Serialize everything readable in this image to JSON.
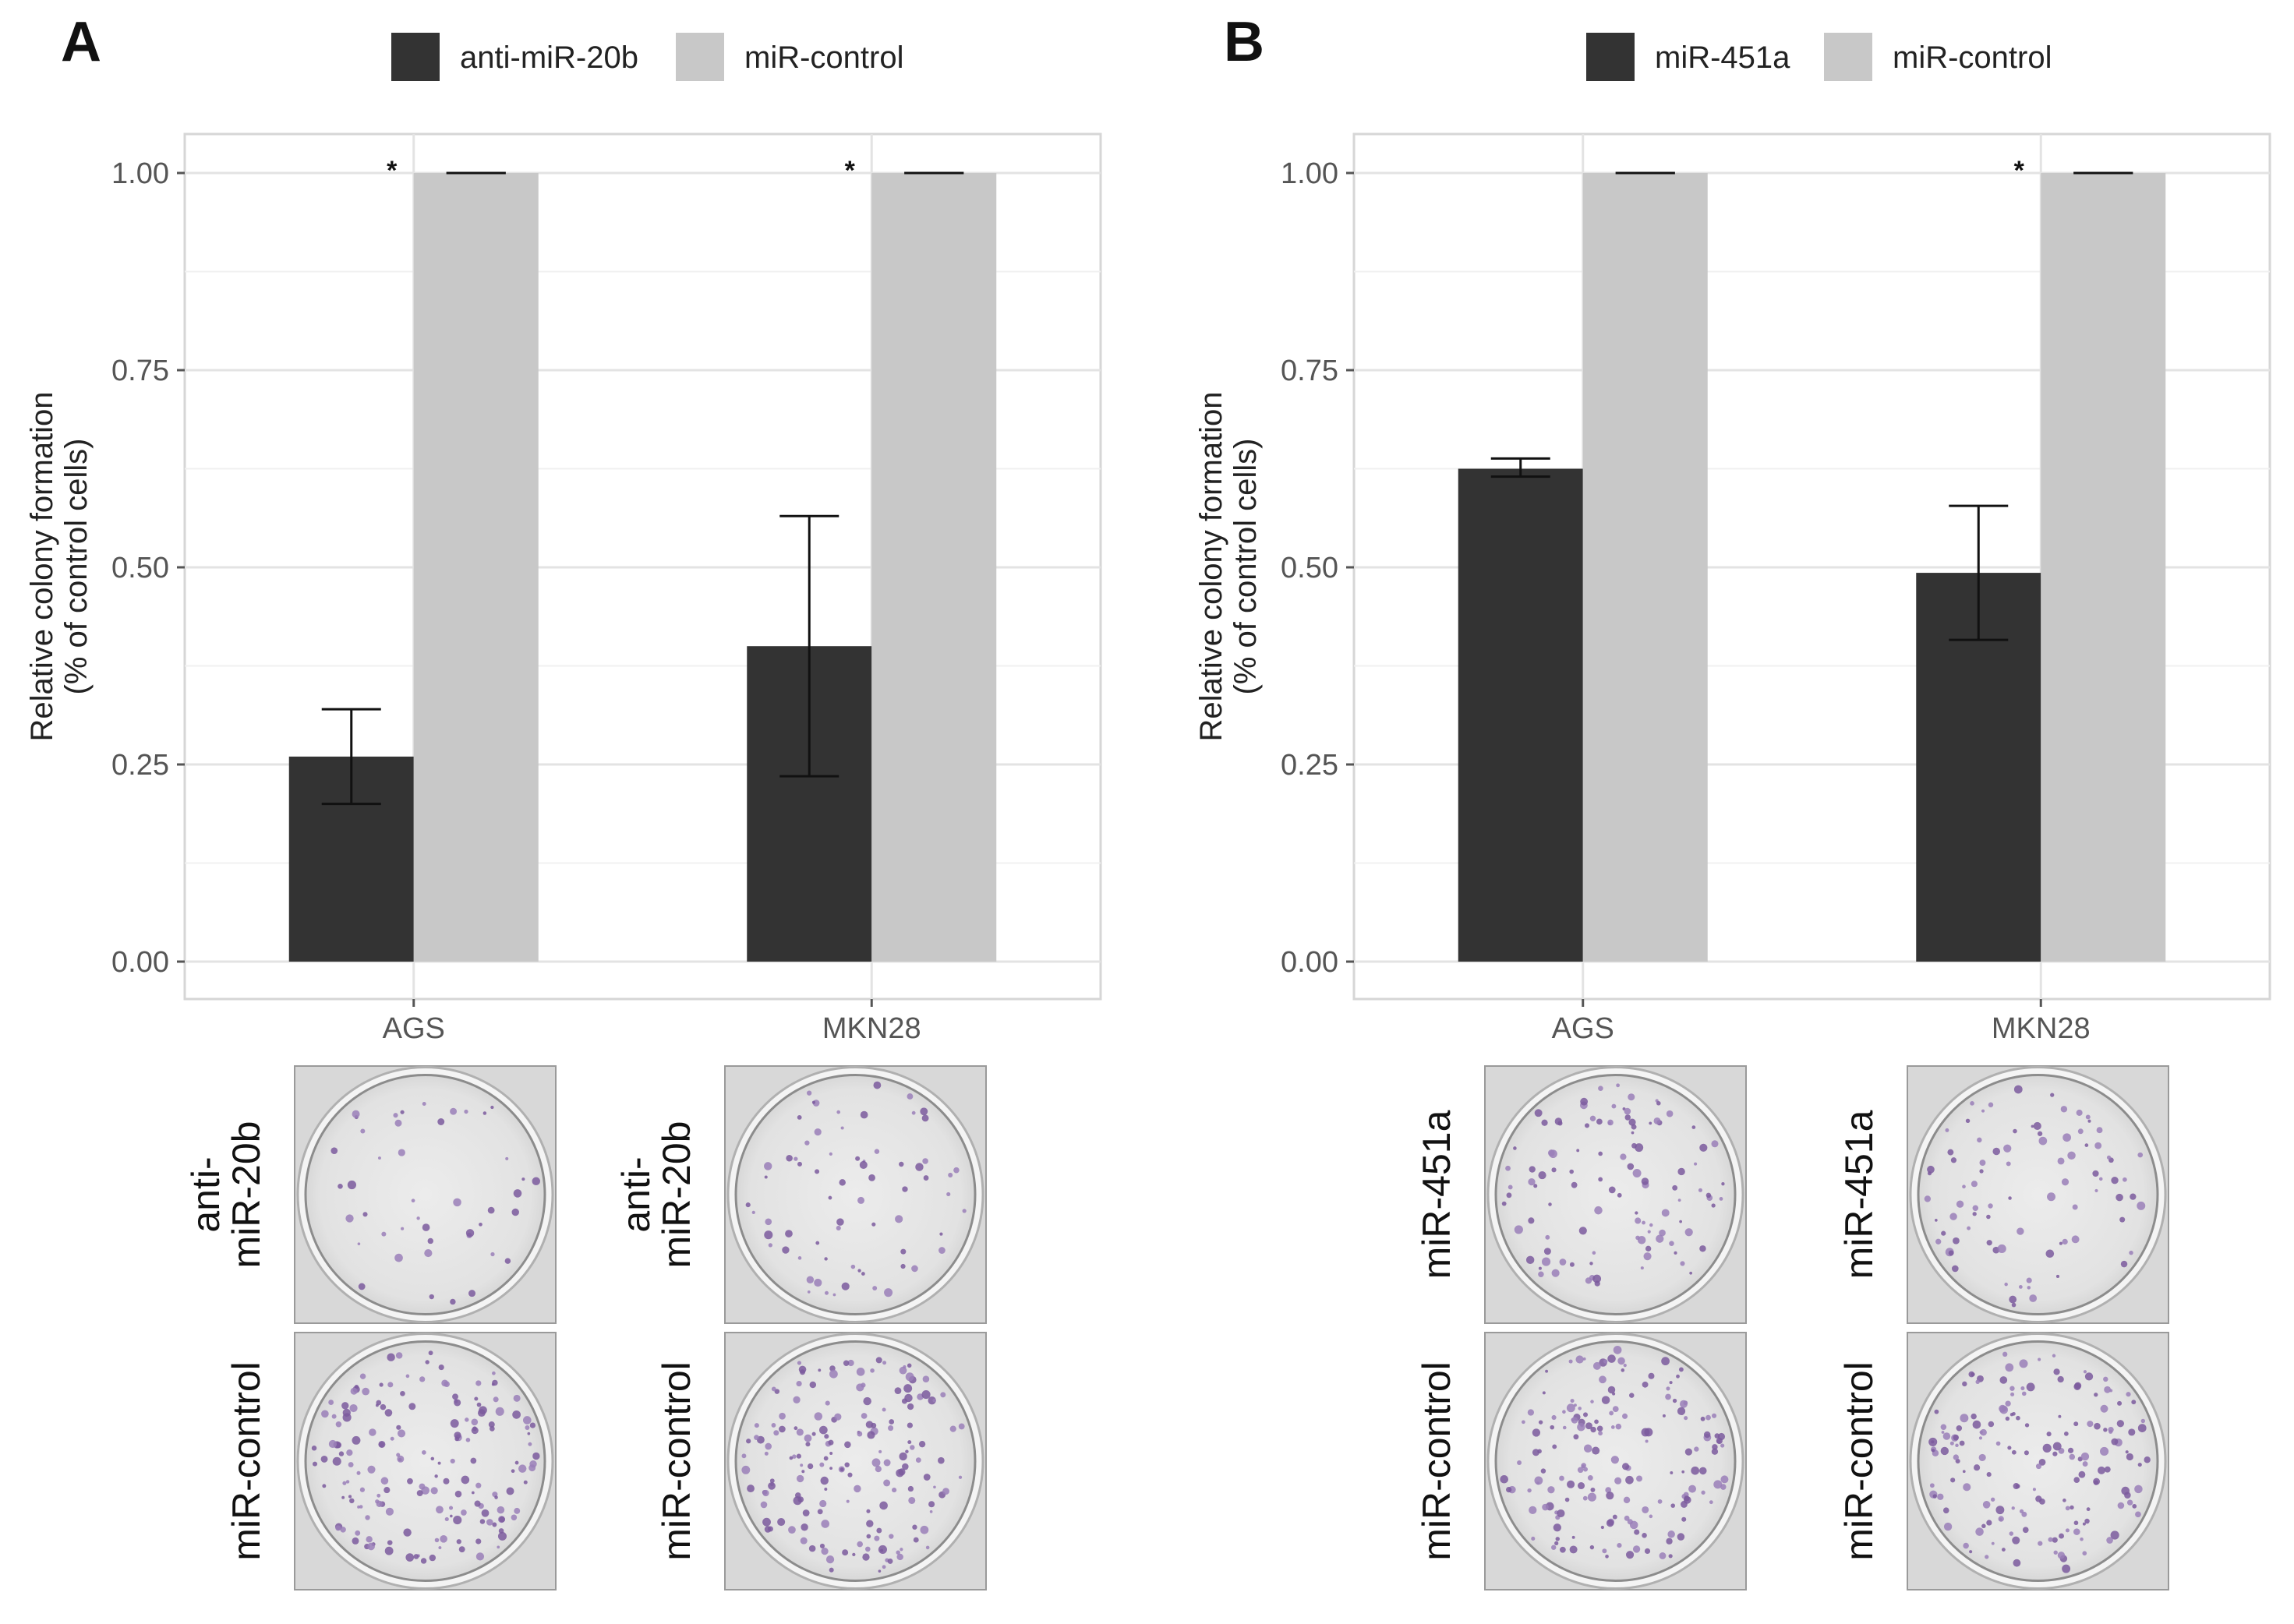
{
  "chart_data": [
    {
      "panel": "A",
      "type": "bar",
      "categories": [
        "AGS",
        "MKN28"
      ],
      "series": [
        {
          "name": "anti-miR-20b",
          "color": "#333333",
          "values": [
            0.26,
            0.4
          ],
          "error_low": [
            0.2,
            0.235
          ],
          "error_high": [
            0.32,
            0.565
          ]
        },
        {
          "name": "miR-control",
          "color": "#c8c8c8",
          "values": [
            1.0,
            1.0
          ],
          "error_low": [
            1.0,
            1.0
          ],
          "error_high": [
            1.0,
            1.0
          ]
        }
      ],
      "significance": [
        "*",
        "*"
      ],
      "yticks": [
        "0.00",
        "0.25",
        "0.50",
        "0.75",
        "1.00"
      ],
      "ylim": [
        0,
        1.05
      ],
      "ylabel_line1": "Relative colony formation",
      "ylabel_line2": "(% of control cells)",
      "xlabel": "",
      "legend_position": "top",
      "plate_rows": [
        {
          "label_line1": "anti-",
          "label_line2": "miR-20b"
        },
        {
          "label_line1": "miR-control",
          "label_line2": ""
        }
      ]
    },
    {
      "panel": "B",
      "type": "bar",
      "categories": [
        "AGS",
        "MKN28"
      ],
      "series": [
        {
          "name": "miR-451a",
          "color": "#333333",
          "values": [
            0.625,
            0.493
          ],
          "error_low": [
            0.615,
            0.408
          ],
          "error_high": [
            0.638,
            0.578
          ]
        },
        {
          "name": "miR-control",
          "color": "#c8c8c8",
          "values": [
            1.0,
            1.0
          ],
          "error_low": [
            1.0,
            1.0
          ],
          "error_high": [
            1.0,
            1.0
          ]
        }
      ],
      "significance": [
        "",
        "*"
      ],
      "yticks": [
        "0.00",
        "0.25",
        "0.50",
        "0.75",
        "1.00"
      ],
      "ylim": [
        0,
        1.05
      ],
      "ylabel_line1": "Relative colony formation",
      "ylabel_line2": "(% of control cells)",
      "xlabel": "",
      "legend_position": "top",
      "plate_rows": [
        {
          "label_line1": "miR-451a",
          "label_line2": ""
        },
        {
          "label_line1": "miR-control",
          "label_line2": ""
        }
      ]
    }
  ]
}
